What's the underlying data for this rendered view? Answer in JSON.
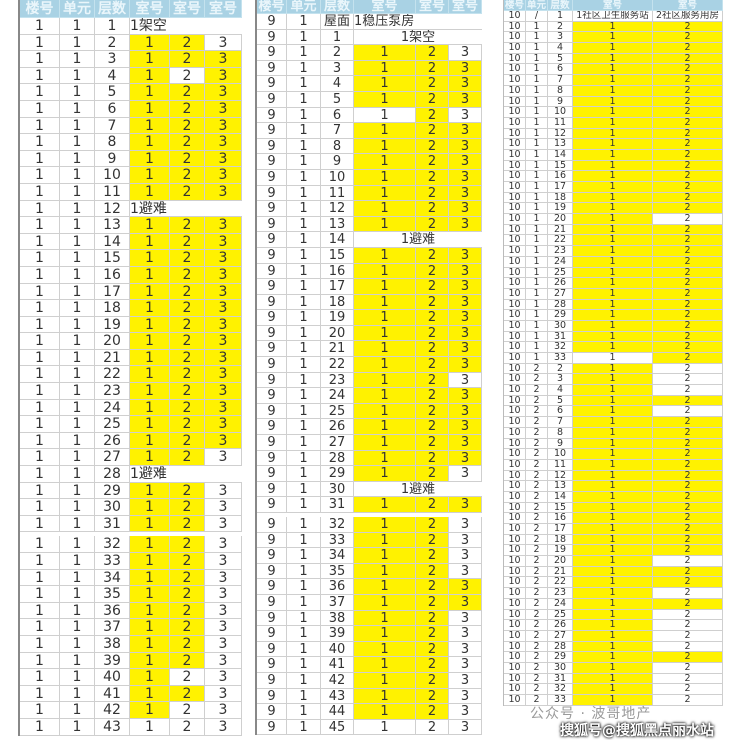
{
  "colors": {
    "highlight": "#fff200",
    "header": "#a9d2e4"
  },
  "tables": [
    {
      "id": "t1",
      "headers": [
        "楼号",
        "单元",
        "层数",
        "室号",
        "室号",
        "室号"
      ],
      "rows": [
        [
          "1",
          "1",
          "1",
          "1架空",
          "",
          "",
          "note"
        ],
        [
          "1",
          "1",
          "2",
          "1",
          "2",
          "3",
          "YYN"
        ],
        [
          "1",
          "1",
          "3",
          "1",
          "2",
          "3",
          "YYY"
        ],
        [
          "1",
          "1",
          "4",
          "1",
          "2",
          "3",
          "YNY"
        ],
        [
          "1",
          "1",
          "5",
          "1",
          "2",
          "3",
          "YYY"
        ],
        [
          "1",
          "1",
          "6",
          "1",
          "2",
          "3",
          "YYY"
        ],
        [
          "1",
          "1",
          "7",
          "1",
          "2",
          "3",
          "YYY"
        ],
        [
          "1",
          "1",
          "8",
          "1",
          "2",
          "3",
          "YYY"
        ],
        [
          "1",
          "1",
          "9",
          "1",
          "2",
          "3",
          "YYY"
        ],
        [
          "1",
          "1",
          "10",
          "1",
          "2",
          "3",
          "YYY"
        ],
        [
          "1",
          "1",
          "11",
          "1",
          "2",
          "3",
          "YYY"
        ],
        [
          "1",
          "1",
          "12",
          "1避难",
          "",
          "",
          "note"
        ],
        [
          "1",
          "1",
          "13",
          "1",
          "2",
          "3",
          "YYY"
        ],
        [
          "1",
          "1",
          "14",
          "1",
          "2",
          "3",
          "YYY"
        ],
        [
          "1",
          "1",
          "15",
          "1",
          "2",
          "3",
          "YYY"
        ],
        [
          "1",
          "1",
          "16",
          "1",
          "2",
          "3",
          "YYY"
        ],
        [
          "1",
          "1",
          "17",
          "1",
          "2",
          "3",
          "YYY"
        ],
        [
          "1",
          "1",
          "18",
          "1",
          "2",
          "3",
          "YYY"
        ],
        [
          "1",
          "1",
          "19",
          "1",
          "2",
          "3",
          "YYY"
        ],
        [
          "1",
          "1",
          "20",
          "1",
          "2",
          "3",
          "YYY"
        ],
        [
          "1",
          "1",
          "21",
          "1",
          "2",
          "3",
          "YYY"
        ],
        [
          "1",
          "1",
          "22",
          "1",
          "2",
          "3",
          "YYY"
        ],
        [
          "1",
          "1",
          "23",
          "1",
          "2",
          "3",
          "YYY"
        ],
        [
          "1",
          "1",
          "24",
          "1",
          "2",
          "3",
          "YYY"
        ],
        [
          "1",
          "1",
          "25",
          "1",
          "2",
          "3",
          "YYY"
        ],
        [
          "1",
          "1",
          "26",
          "1",
          "2",
          "3",
          "YYY"
        ],
        [
          "1",
          "1",
          "27",
          "1",
          "2",
          "3",
          "YYN"
        ],
        [
          "1",
          "1",
          "28",
          "1避难",
          "",
          "",
          "note"
        ],
        [
          "1",
          "1",
          "29",
          "1",
          "2",
          "3",
          "YYN"
        ],
        [
          "1",
          "1",
          "30",
          "1",
          "2",
          "3",
          "YYN"
        ],
        [
          "1",
          "1",
          "31",
          "1",
          "2",
          "3",
          "YYN"
        ],
        [
          "1",
          "1",
          "32",
          "1",
          "2",
          "3",
          "YYN"
        ],
        [
          "1",
          "1",
          "33",
          "1",
          "2",
          "3",
          "YYN"
        ],
        [
          "1",
          "1",
          "34",
          "1",
          "2",
          "3",
          "YYN"
        ],
        [
          "1",
          "1",
          "35",
          "1",
          "2",
          "3",
          "YYN"
        ],
        [
          "1",
          "1",
          "36",
          "1",
          "2",
          "3",
          "YYN"
        ],
        [
          "1",
          "1",
          "37",
          "1",
          "2",
          "3",
          "YYN"
        ],
        [
          "1",
          "1",
          "38",
          "1",
          "2",
          "3",
          "YYN"
        ],
        [
          "1",
          "1",
          "39",
          "1",
          "2",
          "3",
          "YYN"
        ],
        [
          "1",
          "1",
          "40",
          "1",
          "2",
          "3",
          "YNN"
        ],
        [
          "1",
          "1",
          "41",
          "1",
          "2",
          "3",
          "YYN"
        ],
        [
          "1",
          "1",
          "42",
          "1",
          "2",
          "3",
          "YNN"
        ],
        [
          "1",
          "1",
          "43",
          "1",
          "2",
          "3",
          "NNN"
        ]
      ]
    },
    {
      "id": "t2",
      "headers": [
        "楼号",
        "单元",
        "层数",
        "室号",
        "室号",
        "室号"
      ],
      "rows": [
        [
          "9",
          "1",
          "屋面",
          "1稳压泵房",
          "",
          "",
          "note"
        ],
        [
          "9",
          "1",
          "1",
          "1架空",
          "",
          "",
          "notec"
        ],
        [
          "9",
          "1",
          "2",
          "1",
          "2",
          "3",
          "YYN"
        ],
        [
          "9",
          "1",
          "3",
          "1",
          "2",
          "3",
          "YYY"
        ],
        [
          "9",
          "1",
          "4",
          "1",
          "2",
          "3",
          "YYY"
        ],
        [
          "9",
          "1",
          "5",
          "1",
          "2",
          "3",
          "YYY"
        ],
        [
          "9",
          "1",
          "6",
          "1",
          "2",
          "3",
          "NYN"
        ],
        [
          "9",
          "1",
          "7",
          "1",
          "2",
          "3",
          "YYY"
        ],
        [
          "9",
          "1",
          "8",
          "1",
          "2",
          "3",
          "YYY"
        ],
        [
          "9",
          "1",
          "9",
          "1",
          "2",
          "3",
          "YYY"
        ],
        [
          "9",
          "1",
          "10",
          "1",
          "2",
          "3",
          "YYY"
        ],
        [
          "9",
          "1",
          "11",
          "1",
          "2",
          "3",
          "YYY"
        ],
        [
          "9",
          "1",
          "12",
          "1",
          "2",
          "3",
          "YYY"
        ],
        [
          "9",
          "1",
          "13",
          "1",
          "2",
          "3",
          "YYY"
        ],
        [
          "9",
          "1",
          "14",
          "1避难",
          "",
          "",
          "notec"
        ],
        [
          "9",
          "1",
          "15",
          "1",
          "2",
          "3",
          "YYY"
        ],
        [
          "9",
          "1",
          "16",
          "1",
          "2",
          "3",
          "YYY"
        ],
        [
          "9",
          "1",
          "17",
          "1",
          "2",
          "3",
          "YYY"
        ],
        [
          "9",
          "1",
          "18",
          "1",
          "2",
          "3",
          "YYY"
        ],
        [
          "9",
          "1",
          "19",
          "1",
          "2",
          "3",
          "YYY"
        ],
        [
          "9",
          "1",
          "20",
          "1",
          "2",
          "3",
          "YYY"
        ],
        [
          "9",
          "1",
          "21",
          "1",
          "2",
          "3",
          "YYY"
        ],
        [
          "9",
          "1",
          "22",
          "1",
          "2",
          "3",
          "YYY"
        ],
        [
          "9",
          "1",
          "23",
          "1",
          "2",
          "3",
          "YYN"
        ],
        [
          "9",
          "1",
          "24",
          "1",
          "2",
          "3",
          "YYY"
        ],
        [
          "9",
          "1",
          "25",
          "1",
          "2",
          "3",
          "YYY"
        ],
        [
          "9",
          "1",
          "26",
          "1",
          "2",
          "3",
          "YYY"
        ],
        [
          "9",
          "1",
          "27",
          "1",
          "2",
          "3",
          "YYY"
        ],
        [
          "9",
          "1",
          "28",
          "1",
          "2",
          "3",
          "YYY"
        ],
        [
          "9",
          "1",
          "29",
          "1",
          "2",
          "3",
          "YYN"
        ],
        [
          "9",
          "1",
          "30",
          "1避难",
          "",
          "",
          "notec"
        ],
        [
          "9",
          "1",
          "31",
          "1",
          "2",
          "3",
          "YYY"
        ],
        [
          "9",
          "1",
          "32",
          "1",
          "2",
          "3",
          "YYN"
        ],
        [
          "9",
          "1",
          "33",
          "1",
          "2",
          "3",
          "YYN"
        ],
        [
          "9",
          "1",
          "34",
          "1",
          "2",
          "3",
          "YYN"
        ],
        [
          "9",
          "1",
          "35",
          "1",
          "2",
          "3",
          "YYN"
        ],
        [
          "9",
          "1",
          "36",
          "1",
          "2",
          "3",
          "YYY"
        ],
        [
          "9",
          "1",
          "37",
          "1",
          "2",
          "3",
          "YYY"
        ],
        [
          "9",
          "1",
          "38",
          "1",
          "2",
          "3",
          "YYN"
        ],
        [
          "9",
          "1",
          "39",
          "1",
          "2",
          "3",
          "YYN"
        ],
        [
          "9",
          "1",
          "40",
          "1",
          "2",
          "3",
          "YYN"
        ],
        [
          "9",
          "1",
          "41",
          "1",
          "2",
          "3",
          "YYN"
        ],
        [
          "9",
          "1",
          "42",
          "1",
          "2",
          "3",
          "YYN"
        ],
        [
          "9",
          "1",
          "43",
          "1",
          "2",
          "3",
          "YYN"
        ],
        [
          "9",
          "1",
          "44",
          "1",
          "2",
          "3",
          "YYN"
        ],
        [
          "9",
          "1",
          "45",
          "1",
          "2",
          "3",
          "NNN"
        ]
      ]
    },
    {
      "id": "t3",
      "headers": [
        "楼号",
        "单元",
        "层数",
        "室号",
        "室号"
      ],
      "rows": [
        [
          "10",
          "/",
          "1",
          "1社区卫生服务站",
          "2社区服务用房",
          "NN"
        ],
        [
          "10",
          "1",
          "2",
          "1",
          "2",
          "YY"
        ],
        [
          "10",
          "1",
          "3",
          "1",
          "2",
          "YY"
        ],
        [
          "10",
          "1",
          "4",
          "1",
          "2",
          "YY"
        ],
        [
          "10",
          "1",
          "5",
          "1",
          "2",
          "YY"
        ],
        [
          "10",
          "1",
          "6",
          "1",
          "2",
          "YY"
        ],
        [
          "10",
          "1",
          "7",
          "1",
          "2",
          "YY"
        ],
        [
          "10",
          "1",
          "8",
          "1",
          "2",
          "YY"
        ],
        [
          "10",
          "1",
          "9",
          "1",
          "2",
          "YY"
        ],
        [
          "10",
          "1",
          "10",
          "1",
          "2",
          "YY"
        ],
        [
          "10",
          "1",
          "11",
          "1",
          "2",
          "YY"
        ],
        [
          "10",
          "1",
          "12",
          "1",
          "2",
          "YY"
        ],
        [
          "10",
          "1",
          "13",
          "1",
          "2",
          "YY"
        ],
        [
          "10",
          "1",
          "14",
          "1",
          "2",
          "YY"
        ],
        [
          "10",
          "1",
          "15",
          "1",
          "2",
          "YY"
        ],
        [
          "10",
          "1",
          "16",
          "1",
          "2",
          "YY"
        ],
        [
          "10",
          "1",
          "17",
          "1",
          "2",
          "YY"
        ],
        [
          "10",
          "1",
          "18",
          "1",
          "2",
          "YY"
        ],
        [
          "10",
          "1",
          "19",
          "1",
          "2",
          "YY"
        ],
        [
          "10",
          "1",
          "20",
          "1",
          "2",
          "YN"
        ],
        [
          "10",
          "1",
          "21",
          "1",
          "2",
          "YY"
        ],
        [
          "10",
          "1",
          "22",
          "1",
          "2",
          "YY"
        ],
        [
          "10",
          "1",
          "23",
          "1",
          "2",
          "YY"
        ],
        [
          "10",
          "1",
          "24",
          "1",
          "2",
          "YY"
        ],
        [
          "10",
          "1",
          "25",
          "1",
          "2",
          "YY"
        ],
        [
          "10",
          "1",
          "26",
          "1",
          "2",
          "YY"
        ],
        [
          "10",
          "1",
          "27",
          "1",
          "2",
          "YY"
        ],
        [
          "10",
          "1",
          "28",
          "1",
          "2",
          "YY"
        ],
        [
          "10",
          "1",
          "29",
          "1",
          "2",
          "YY"
        ],
        [
          "10",
          "1",
          "30",
          "1",
          "2",
          "YY"
        ],
        [
          "10",
          "1",
          "31",
          "1",
          "2",
          "YY"
        ],
        [
          "10",
          "1",
          "32",
          "1",
          "2",
          "YY"
        ],
        [
          "10",
          "1",
          "33",
          "1",
          "2",
          "NY"
        ],
        [
          "10",
          "2",
          "2",
          "1",
          "2",
          "YN"
        ],
        [
          "10",
          "2",
          "3",
          "1",
          "2",
          "YN"
        ],
        [
          "10",
          "2",
          "4",
          "1",
          "2",
          "YN"
        ],
        [
          "10",
          "2",
          "5",
          "1",
          "2",
          "YY"
        ],
        [
          "10",
          "2",
          "6",
          "1",
          "2",
          "YN"
        ],
        [
          "10",
          "2",
          "7",
          "1",
          "2",
          "YY"
        ],
        [
          "10",
          "2",
          "8",
          "1",
          "2",
          "YY"
        ],
        [
          "10",
          "2",
          "9",
          "1",
          "2",
          "YY"
        ],
        [
          "10",
          "2",
          "10",
          "1",
          "2",
          "YY"
        ],
        [
          "10",
          "2",
          "11",
          "1",
          "2",
          "YY"
        ],
        [
          "10",
          "2",
          "12",
          "1",
          "2",
          "YY"
        ],
        [
          "10",
          "2",
          "13",
          "1",
          "2",
          "YY"
        ],
        [
          "10",
          "2",
          "14",
          "1",
          "2",
          "YY"
        ],
        [
          "10",
          "2",
          "15",
          "1",
          "2",
          "YY"
        ],
        [
          "10",
          "2",
          "16",
          "1",
          "2",
          "YY"
        ],
        [
          "10",
          "2",
          "17",
          "1",
          "2",
          "YY"
        ],
        [
          "10",
          "2",
          "18",
          "1",
          "2",
          "YY"
        ],
        [
          "10",
          "2",
          "19",
          "1",
          "2",
          "YY"
        ],
        [
          "10",
          "2",
          "20",
          "1",
          "2",
          "YN"
        ],
        [
          "10",
          "2",
          "21",
          "1",
          "2",
          "YY"
        ],
        [
          "10",
          "2",
          "22",
          "1",
          "2",
          "YY"
        ],
        [
          "10",
          "2",
          "23",
          "1",
          "2",
          "YN"
        ],
        [
          "10",
          "2",
          "24",
          "1",
          "2",
          "YY"
        ],
        [
          "10",
          "2",
          "25",
          "1",
          "2",
          "YN"
        ],
        [
          "10",
          "2",
          "26",
          "1",
          "2",
          "YN"
        ],
        [
          "10",
          "2",
          "27",
          "1",
          "2",
          "YN"
        ],
        [
          "10",
          "2",
          "28",
          "1",
          "2",
          "YN"
        ],
        [
          "10",
          "2",
          "29",
          "1",
          "2",
          "YY"
        ],
        [
          "10",
          "2",
          "30",
          "1",
          "2",
          "YN"
        ],
        [
          "10",
          "2",
          "31",
          "1",
          "2",
          "YN"
        ],
        [
          "10",
          "2",
          "32",
          "1",
          "2",
          "YN"
        ],
        [
          "10",
          "2",
          "33",
          "1",
          "2",
          "YN"
        ]
      ]
    }
  ],
  "watermarks": {
    "primary": "公众号 · 波哥地产",
    "secondary": "搜狐号@搜狐黑点丽水站"
  }
}
